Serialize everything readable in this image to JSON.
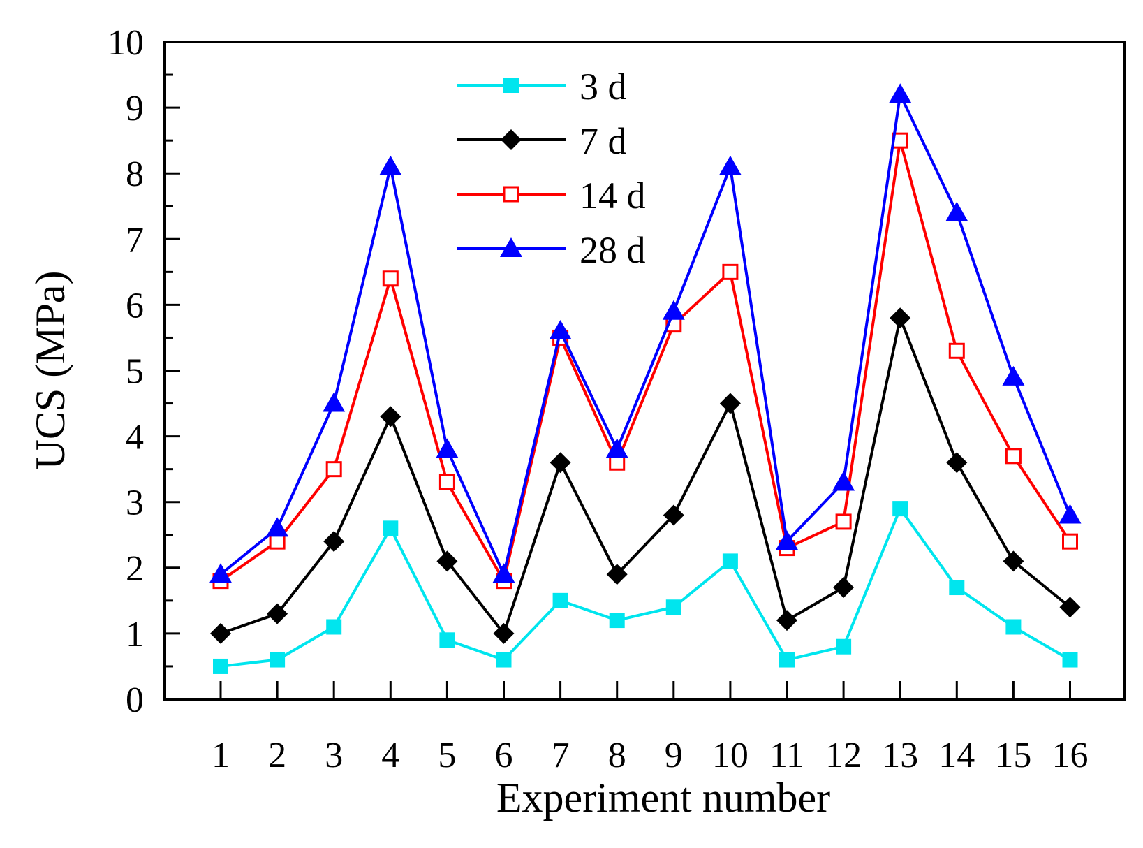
{
  "chart_data": {
    "type": "line",
    "title": "",
    "xlabel": "Experiment number",
    "ylabel": "UCS (MPa)",
    "ylim": [
      0,
      10
    ],
    "yticks": [
      "0",
      "1",
      "2",
      "3",
      "4",
      "5",
      "6",
      "7",
      "8",
      "9",
      "10"
    ],
    "categories": [
      "1",
      "2",
      "3",
      "4",
      "5",
      "6",
      "7",
      "8",
      "9",
      "10",
      "11",
      "12",
      "13",
      "14",
      "15",
      "16"
    ],
    "legend_position": "top-center",
    "grid": false,
    "series": [
      {
        "name": "3 d",
        "color": "#00e5ee",
        "marker": "square-filled",
        "values": [
          0.5,
          0.6,
          1.1,
          2.6,
          0.9,
          0.6,
          1.5,
          1.2,
          1.4,
          2.1,
          0.6,
          0.8,
          2.9,
          1.7,
          1.1,
          0.6
        ]
      },
      {
        "name": "7 d",
        "color": "#000000",
        "marker": "diamond-filled",
        "values": [
          1.0,
          1.3,
          2.4,
          4.3,
          2.1,
          1.0,
          3.6,
          1.9,
          2.8,
          4.5,
          1.2,
          1.7,
          5.8,
          3.6,
          2.1,
          1.4
        ]
      },
      {
        "name": "14 d",
        "color": "#ff0000",
        "marker": "square-open",
        "values": [
          1.8,
          2.4,
          3.5,
          6.4,
          3.3,
          1.8,
          5.5,
          3.6,
          5.7,
          6.5,
          2.3,
          2.7,
          8.5,
          5.3,
          3.7,
          2.4
        ]
      },
      {
        "name": "28 d",
        "color": "#0000ff",
        "marker": "triangle-filled",
        "values": [
          1.9,
          2.6,
          4.5,
          8.1,
          3.8,
          1.9,
          5.6,
          3.8,
          5.9,
          8.1,
          2.4,
          3.3,
          9.2,
          7.4,
          4.9,
          2.8
        ]
      }
    ]
  }
}
